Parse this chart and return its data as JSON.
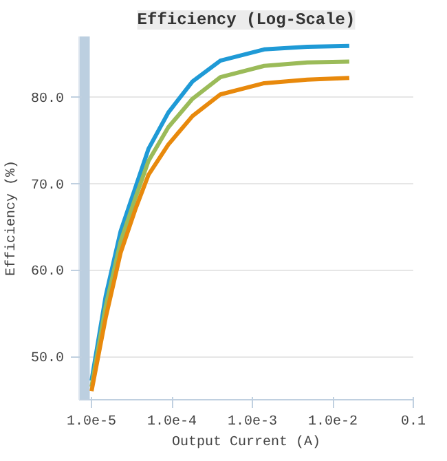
{
  "chart_data": {
    "type": "line",
    "title": "Efficiency (Log-Scale)",
    "xlabel": "Output Current (A)",
    "ylabel": "Efficiency (%)",
    "x": [
      1e-05,
      1.5e-05,
      2.3e-05,
      3.5e-05,
      5.1e-05,
      9e-05,
      0.00018,
      0.0004,
      0.0014,
      0.0048,
      0.016
    ],
    "series": [
      {
        "color": "#1f9ad6",
        "values": [
          47.2,
          57,
          64.5,
          69.5,
          74,
          78.2,
          81.8,
          84.2,
          85.5,
          85.8,
          85.9
        ]
      },
      {
        "color": "#9bbb59",
        "values": [
          46.5,
          55.8,
          63.3,
          68.3,
          72.6,
          76.5,
          79.8,
          82.3,
          83.6,
          84.0,
          84.1
        ]
      },
      {
        "color": "#e8890c",
        "values": [
          46.0,
          54.5,
          62,
          67,
          71,
          74.5,
          77.8,
          80.3,
          81.6,
          82.0,
          82.2
        ]
      }
    ],
    "log": "x",
    "xlim": [
      7e-06,
      0.1
    ],
    "xticks": [
      {
        "value": 1e-05,
        "label": "1.0e-5"
      },
      {
        "value": 0.0001,
        "label": "1.0e-4"
      },
      {
        "value": 0.001,
        "label": "1.0e-3"
      },
      {
        "value": 0.01,
        "label": "1.0e-2"
      },
      0.1
    ],
    "ylim": [
      45,
      87
    ],
    "yticks": [
      {
        "value": 50,
        "label": "50.0"
      },
      {
        "value": 60,
        "label": "60.0"
      },
      {
        "value": 70,
        "label": "70.0"
      },
      {
        "value": 80,
        "label": "80.0"
      }
    ],
    "grid": "y",
    "bands": [
      {
        "axis": "x",
        "from": 7e-06,
        "to": 9.5e-06,
        "color": "#bccfe0"
      }
    ],
    "line_style": "solid",
    "marker": "none"
  }
}
